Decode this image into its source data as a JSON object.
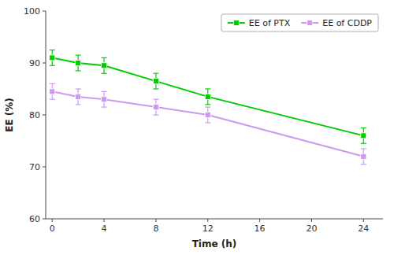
{
  "chart_data": {
    "type": "line",
    "x": [
      0,
      2,
      4,
      8,
      12,
      24
    ],
    "series": [
      {
        "name": "EE of PTX",
        "color": "#00cc00",
        "marker": "square",
        "values": [
          91.0,
          90.0,
          89.5,
          86.5,
          83.5,
          76.0
        ],
        "errors": [
          1.5,
          1.5,
          1.5,
          1.5,
          1.5,
          1.5
        ]
      },
      {
        "name": "EE of CDDP",
        "color": "#cc99ee",
        "marker": "square",
        "values": [
          84.5,
          83.5,
          83.0,
          81.5,
          80.0,
          72.0
        ],
        "errors": [
          1.5,
          1.5,
          1.5,
          1.5,
          1.5,
          1.5
        ]
      }
    ],
    "x_label": "Time (h)",
    "y_label": "EE (%)",
    "xlim": [
      -0.5,
      25.5
    ],
    "ylim": [
      60,
      100
    ],
    "xticks": [
      0,
      4,
      8,
      12,
      16,
      20,
      24
    ],
    "yticks": [
      60,
      70,
      80,
      90,
      100
    ],
    "grid": false,
    "legend": "upper right"
  }
}
